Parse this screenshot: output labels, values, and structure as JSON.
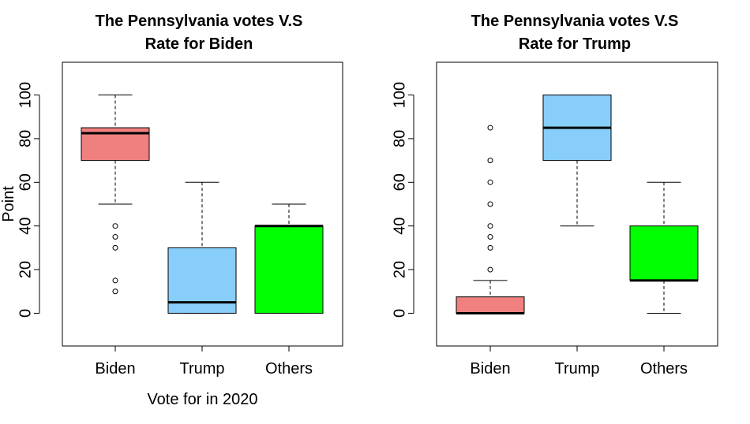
{
  "chart_data": [
    {
      "type": "boxplot",
      "title_lines": [
        "The Pennsylvania votes V.S",
        "Rate for Biden"
      ],
      "xlabel": "Vote for in 2020",
      "ylabel": "Point",
      "ylim": [
        -15,
        115
      ],
      "yticks": [
        0,
        20,
        40,
        60,
        80,
        100
      ],
      "categories": [
        "Biden",
        "Trump",
        "Others"
      ],
      "boxes": [
        {
          "name": "Biden",
          "color": "#f08080",
          "whisker_low": 50,
          "q1": 70,
          "median": 82.5,
          "q3": 85,
          "whisker_high": 100,
          "outliers": [
            40,
            35,
            30,
            15,
            10
          ]
        },
        {
          "name": "Trump",
          "color": "#87cefa",
          "whisker_low": 0,
          "q1": 0,
          "median": 5,
          "q3": 30,
          "whisker_high": 60,
          "outliers": []
        },
        {
          "name": "Others",
          "color": "#00ff00",
          "whisker_low": 0,
          "q1": 0,
          "median": 40,
          "q3": 40,
          "whisker_high": 50,
          "outliers": []
        }
      ]
    },
    {
      "type": "boxplot",
      "title_lines": [
        "The Pennsylvania votes V.S",
        "Rate for Trump"
      ],
      "xlabel": "",
      "ylabel": "",
      "ylim": [
        -15,
        115
      ],
      "yticks": [
        0,
        20,
        40,
        60,
        80,
        100
      ],
      "categories": [
        "Biden",
        "Trump",
        "Others"
      ],
      "boxes": [
        {
          "name": "Biden",
          "color": "#f08080",
          "whisker_low": 0,
          "q1": 0,
          "median": 0,
          "q3": 7.5,
          "whisker_high": 15,
          "outliers": [
            20,
            30,
            35,
            40,
            50,
            60,
            70,
            85
          ]
        },
        {
          "name": "Trump",
          "color": "#87cefa",
          "whisker_low": 40,
          "q1": 70,
          "median": 85,
          "q3": 100,
          "whisker_high": 100,
          "outliers": []
        },
        {
          "name": "Others",
          "color": "#00ff00",
          "whisker_low": 0,
          "q1": 15,
          "median": 15,
          "q3": 40,
          "whisker_high": 60,
          "outliers": []
        }
      ]
    }
  ]
}
